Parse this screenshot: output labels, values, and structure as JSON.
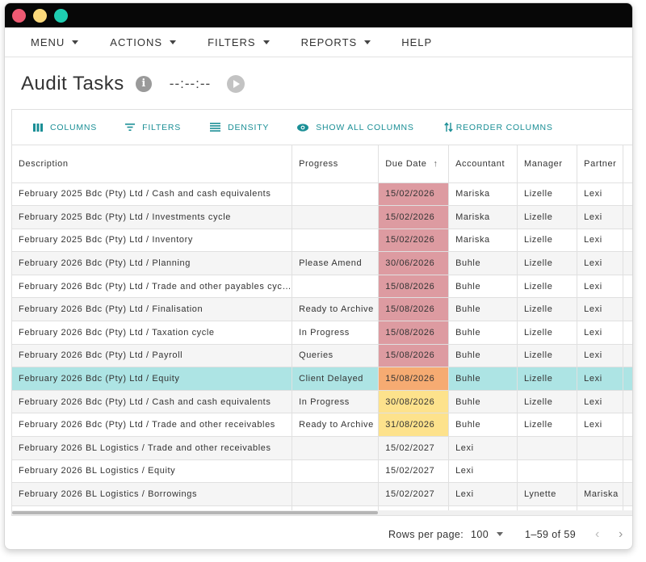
{
  "window": {
    "dots": [
      "#ee5a73",
      "#fcd97b",
      "#1ecdb1"
    ]
  },
  "menubar": {
    "items": [
      {
        "label": "MENU",
        "has_caret": true
      },
      {
        "label": "ACTIONS",
        "has_caret": true
      },
      {
        "label": "FILTERS",
        "has_caret": true
      },
      {
        "label": "REPORTS",
        "has_caret": true
      },
      {
        "label": "HELP",
        "has_caret": false
      }
    ]
  },
  "header": {
    "title": "Audit Tasks",
    "info_icon": "info-icon",
    "timer": "--:--:--",
    "play_icon": "play-icon"
  },
  "toolbar": {
    "buttons": [
      {
        "label": "COLUMNS",
        "icon": "columns-icon"
      },
      {
        "label": "FILTERS",
        "icon": "filter-icon"
      },
      {
        "label": "DENSITY",
        "icon": "density-icon"
      },
      {
        "label": "SHOW ALL COLUMNS",
        "icon": "eye-icon"
      },
      {
        "label": "REORDER COLUMNS",
        "icon": "reorder-icon"
      }
    ]
  },
  "table": {
    "columns": [
      {
        "label": "Description"
      },
      {
        "label": "Progress"
      },
      {
        "label": "Due Date",
        "sorted": "asc"
      },
      {
        "label": "Accountant"
      },
      {
        "label": "Manager"
      },
      {
        "label": "Partner"
      }
    ],
    "rows": [
      {
        "description": "February 2025 Bdc (Pty) Ltd / Cash and cash equivalents",
        "progress": "",
        "due_date": "15/02/2026",
        "due_status": "red",
        "accountant": "Mariska",
        "manager": "Lizelle",
        "partner": "Lexi"
      },
      {
        "description": "February 2025 Bdc (Pty) Ltd / Investments cycle",
        "progress": "",
        "due_date": "15/02/2026",
        "due_status": "red",
        "accountant": "Mariska",
        "manager": "Lizelle",
        "partner": "Lexi"
      },
      {
        "description": "February 2025 Bdc (Pty) Ltd / Inventory",
        "progress": "",
        "due_date": "15/02/2026",
        "due_status": "red",
        "accountant": "Mariska",
        "manager": "Lizelle",
        "partner": "Lexi"
      },
      {
        "description": "February 2026 Bdc (Pty) Ltd / Planning",
        "progress": "Please Amend",
        "due_date": "30/06/2026",
        "due_status": "red",
        "accountant": "Buhle",
        "manager": "Lizelle",
        "partner": "Lexi"
      },
      {
        "description": "February 2026 Bdc (Pty) Ltd / Trade and other payables cyc…",
        "progress": "",
        "due_date": "15/08/2026",
        "due_status": "red",
        "accountant": "Buhle",
        "manager": "Lizelle",
        "partner": "Lexi"
      },
      {
        "description": "February 2026 Bdc (Pty) Ltd / Finalisation",
        "progress": "Ready to Archive",
        "due_date": "15/08/2026",
        "due_status": "red",
        "accountant": "Buhle",
        "manager": "Lizelle",
        "partner": "Lexi"
      },
      {
        "description": "February 2026 Bdc (Pty) Ltd / Taxation cycle",
        "progress": "In Progress",
        "due_date": "15/08/2026",
        "due_status": "red",
        "accountant": "Buhle",
        "manager": "Lizelle",
        "partner": "Lexi"
      },
      {
        "description": "February 2026 Bdc (Pty) Ltd / Payroll",
        "progress": "Queries",
        "due_date": "15/08/2026",
        "due_status": "red",
        "accountant": "Buhle",
        "manager": "Lizelle",
        "partner": "Lexi"
      },
      {
        "description": "February 2026 Bdc (Pty) Ltd / Equity",
        "progress": "Client Delayed",
        "due_date": "15/08/2026",
        "due_status": "orange",
        "accountant": "Buhle",
        "manager": "Lizelle",
        "partner": "Lexi",
        "selected": true
      },
      {
        "description": "February 2026 Bdc (Pty) Ltd / Cash and cash equivalents",
        "progress": "In Progress",
        "due_date": "30/08/2026",
        "due_status": "yellow",
        "accountant": "Buhle",
        "manager": "Lizelle",
        "partner": "Lexi"
      },
      {
        "description": "February 2026 Bdc (Pty) Ltd / Trade and other receivables",
        "progress": "Ready to Archive",
        "due_date": "31/08/2026",
        "due_status": "yellow",
        "accountant": "Buhle",
        "manager": "Lizelle",
        "partner": "Lexi"
      },
      {
        "description": "February 2026 BL Logistics / Trade and other receivables",
        "progress": "",
        "due_date": "15/02/2027",
        "due_status": "none",
        "accountant": "Lexi",
        "manager": "",
        "partner": ""
      },
      {
        "description": "February 2026 BL Logistics / Equity",
        "progress": "",
        "due_date": "15/02/2027",
        "due_status": "none",
        "accountant": "Lexi",
        "manager": "",
        "partner": ""
      },
      {
        "description": "February 2026 BL Logistics / Borrowings",
        "progress": "",
        "due_date": "15/02/2027",
        "due_status": "none",
        "accountant": "Lexi",
        "manager": "Lynette",
        "partner": "Mariska"
      },
      {
        "description": "",
        "progress": "",
        "due_date": "",
        "due_status": "none",
        "accountant": "",
        "manager": "",
        "partner": ""
      }
    ]
  },
  "footer": {
    "rows_per_page_label": "Rows per page:",
    "rows_per_page_value": "100",
    "range": "1–59 of 59",
    "prev_icon": "chevron-left-icon",
    "next_icon": "chevron-right-icon"
  },
  "colors": {
    "accent": "#1b8f96",
    "due_red": "#dd9ba1",
    "due_orange": "#f6ab72",
    "due_yellow": "#fde28c",
    "selected_row": "#ade4e4"
  }
}
